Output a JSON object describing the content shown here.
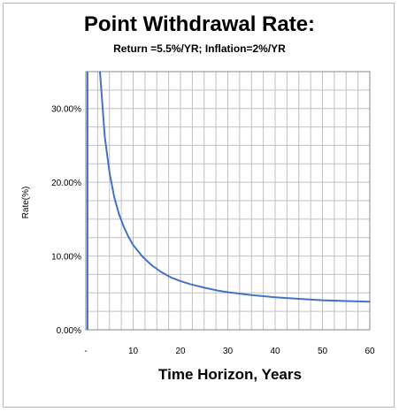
{
  "chart_data": {
    "type": "line",
    "title": "Point Withdrawal Rate:",
    "subtitle": "Return =5.5%/YR; Inflation=2%/YR",
    "xlabel": "Time Horizon, Years",
    "ylabel": "Rate(%)",
    "xlim": [
      0,
      60
    ],
    "ylim": [
      0,
      0.35
    ],
    "x_ticks": [
      0,
      10,
      20,
      30,
      40,
      50,
      60
    ],
    "x_tick_labels": [
      "-",
      "10",
      "20",
      "30",
      "40",
      "50",
      "60"
    ],
    "y_ticks": [
      0,
      0.1,
      0.2,
      0.3
    ],
    "y_tick_labels": [
      "0.00%",
      "10.00%",
      "20.00%",
      "30.00%"
    ],
    "grid": true,
    "line_color": "#4472c4",
    "grid_color": "#c0c0c0",
    "series": [
      {
        "x": [
          3,
          4,
          5,
          6,
          7,
          8,
          9,
          10,
          12,
          14,
          16,
          18,
          20,
          22,
          25,
          28,
          30,
          35,
          40,
          45,
          50,
          55,
          60
        ],
        "y": [
          0.35,
          0.262,
          0.213,
          0.18,
          0.157,
          0.14,
          0.126,
          0.115,
          0.099,
          0.087,
          0.078,
          0.071,
          0.066,
          0.062,
          0.057,
          0.053,
          0.051,
          0.047,
          0.044,
          0.042,
          0.04,
          0.039,
          0.038
        ]
      }
    ]
  }
}
